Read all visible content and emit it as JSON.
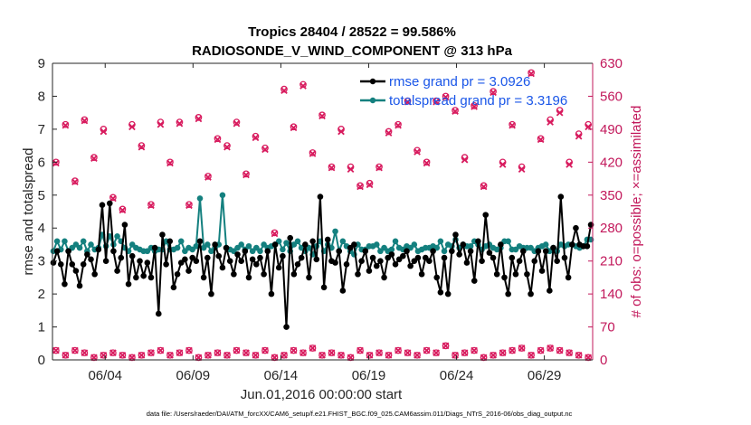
{
  "chart_data": {
    "type": "line",
    "title_line1": "Tropics 28404 / 28522 = 99.586%",
    "title_line2": "RADIOSONDE_V_WIND_COMPONENT @ 313 hPa",
    "xlabel": "Jun.01,2016 00:00:00 start",
    "ylabel_left": "rmse and totalspread",
    "ylabel_right": "# of obs: o=possible; ×=assimilated",
    "footer": "data file: /Users/raeder/DAI/ATM_forcXX/CAM6_setup/f.e21.FHIST_BGC.f09_025.CAM6assim.011/Diags_NTrS_2016-06/obs_diag_output.nc",
    "xlim": [
      0,
      30.75
    ],
    "ylim_left": [
      0,
      9
    ],
    "ylim_right": [
      0,
      630
    ],
    "x_ticks": [
      {
        "x": 3,
        "label": "06/04"
      },
      {
        "x": 8,
        "label": "06/09"
      },
      {
        "x": 13,
        "label": "06/14"
      },
      {
        "x": 18,
        "label": "06/19"
      },
      {
        "x": 23,
        "label": "06/24"
      },
      {
        "x": 28,
        "label": "06/29"
      }
    ],
    "y_ticks_left": [
      "0",
      "1",
      "2",
      "3",
      "4",
      "5",
      "6",
      "7",
      "8",
      "9"
    ],
    "y_ticks_right": [
      "0",
      "70",
      "140",
      "210",
      "280",
      "350",
      "420",
      "490",
      "560",
      "630"
    ],
    "legend": [
      {
        "label": "rmse grand pr = 3.0926",
        "color": "#000000"
      },
      {
        "label": "totalspread grand pr = 3.3196",
        "color": "#14807f"
      }
    ],
    "colors": {
      "rmse": "#000000",
      "spread": "#14807f",
      "obs": "#d81b5e",
      "axis_right": "#c2185b"
    },
    "series": [
      {
        "name": "rmse",
        "values": [
          2.95,
          3.3,
          2.9,
          2.3,
          3.3,
          2.9,
          2.7,
          2.25,
          2.9,
          3.2,
          3.05,
          2.6,
          3.35,
          4.7,
          3.0,
          4.75,
          3.3,
          2.7,
          3.1,
          4.1,
          2.3,
          3.15,
          2.5,
          3.0,
          2.55,
          2.95,
          2.5,
          3.4,
          1.4,
          3.8,
          2.9,
          3.6,
          2.2,
          2.6,
          2.95,
          3.05,
          2.7,
          3.1,
          3.0,
          3.6,
          2.5,
          3.1,
          2.0,
          3.5,
          3.15,
          2.8,
          3.4,
          3.0,
          2.6,
          3.2,
          3.0,
          3.3,
          2.5,
          3.05,
          2.9,
          3.1,
          2.6,
          3.3,
          2.0,
          3.5,
          2.8,
          3.15,
          1.0,
          3.7,
          2.6,
          2.9,
          3.1,
          3.5,
          2.5,
          3.6,
          3.05,
          4.95,
          2.2,
          3.65,
          3.0,
          2.95,
          3.3,
          2.1,
          2.9,
          3.4,
          3.5,
          2.6,
          3.0,
          3.3,
          2.7,
          3.1,
          2.85,
          3.0,
          2.5,
          3.1,
          3.2,
          2.9,
          3.05,
          3.15,
          3.3,
          2.85,
          3.0,
          3.1,
          2.6,
          3.1,
          3.0,
          3.3,
          2.5,
          2.05,
          3.1,
          2.0,
          3.3,
          3.8,
          3.2,
          3.5,
          2.95,
          3.3,
          2.4,
          3.6,
          3.0,
          4.4,
          3.25,
          3.1,
          2.6,
          3.5,
          2.5,
          2.0,
          3.1,
          2.6,
          3.0,
          3.3,
          2.6,
          2.0,
          3.0,
          3.3,
          2.7,
          3.3,
          2.1,
          3.4,
          3.0,
          4.95,
          3.1,
          2.5,
          3.5,
          4.0,
          3.5,
          3.45,
          3.45,
          4.1
        ]
      },
      {
        "name": "totalspread",
        "values": [
          3.3,
          3.6,
          3.35,
          3.6,
          3.3,
          3.4,
          3.5,
          3.4,
          3.6,
          3.3,
          3.5,
          3.35,
          3.4,
          3.8,
          3.45,
          3.75,
          3.5,
          3.75,
          3.6,
          3.4,
          3.3,
          3.5,
          3.4,
          3.35,
          3.3,
          3.3,
          3.4,
          3.3,
          3.35,
          3.35,
          3.6,
          3.35,
          3.35,
          3.4,
          3.6,
          3.3,
          3.4,
          3.35,
          3.45,
          4.9,
          3.4,
          3.5,
          3.3,
          3.4,
          3.5,
          5.0,
          3.4,
          3.35,
          3.3,
          3.4,
          3.5,
          3.35,
          3.45,
          3.3,
          3.4,
          3.3,
          3.5,
          3.4,
          3.45,
          3.5,
          3.6,
          3.35,
          3.55,
          3.3,
          3.5,
          3.6,
          3.4,
          3.3,
          3.4,
          3.2,
          3.45,
          3.6,
          3.3,
          3.5,
          3.4,
          3.9,
          3.3,
          3.6,
          3.45,
          3.3,
          3.2,
          3.5,
          3.35,
          3.35,
          3.45,
          3.45,
          3.5,
          3.3,
          3.4,
          3.3,
          3.35,
          3.6,
          3.4,
          3.35,
          3.45,
          3.4,
          3.5,
          3.3,
          3.35,
          3.4,
          3.4,
          3.45,
          3.4,
          3.6,
          3.3,
          3.5,
          3.45,
          3.65,
          3.4,
          3.5,
          3.45,
          3.45,
          3.6,
          3.5,
          3.35,
          3.45,
          3.5,
          3.4,
          3.35,
          3.4,
          3.6,
          3.6,
          3.35,
          3.35,
          3.45,
          3.4,
          3.4,
          3.4,
          3.3,
          3.4,
          3.45,
          3.5,
          3.3,
          3.4,
          3.3,
          3.5,
          3.45,
          3.5,
          3.5,
          3.45,
          3.4,
          3.45,
          3.65,
          3.65
        ]
      },
      {
        "name": "obs_possible_high",
        "values": [
          420,
          500,
          380,
          510,
          430,
          490,
          345,
          320,
          500,
          455,
          330,
          505,
          420,
          505,
          330,
          515,
          390,
          470,
          455,
          505,
          395,
          475,
          450,
          270,
          575,
          495,
          585,
          440,
          520,
          410,
          490,
          410,
          370,
          375,
          410,
          485,
          500,
          550,
          445,
          420,
          550,
          560,
          530,
          430,
          540,
          370,
          570,
          420,
          500,
          410,
          610,
          470,
          510,
          530,
          420,
          480,
          500
        ]
      },
      {
        "name": "obs_assimilated_high",
        "values": [
          418,
          498,
          378,
          508,
          428,
          485,
          343,
          318,
          495,
          452,
          328,
          500,
          418,
          502,
          328,
          512,
          388,
          468,
          452,
          502,
          393,
          472,
          447,
          268,
          572,
          493,
          582,
          438,
          518,
          408,
          485,
          405,
          368,
          372,
          408,
          482,
          498,
          548,
          442,
          418,
          548,
          558,
          528,
          425,
          538,
          368,
          568,
          415,
          498,
          405,
          608,
          468,
          505,
          525,
          415,
          475,
          495
        ]
      },
      {
        "name": "obs_low",
        "values": [
          20,
          10,
          20,
          15,
          5,
          10,
          15,
          10,
          5,
          10,
          15,
          20,
          10,
          15,
          20,
          5,
          10,
          15,
          10,
          20,
          15,
          10,
          20,
          5,
          10,
          20,
          15,
          25,
          10,
          15,
          10,
          5,
          20,
          10,
          15,
          10,
          20,
          15,
          10,
          20,
          15,
          30,
          10,
          15,
          20,
          5,
          10,
          15,
          20,
          25,
          10,
          20,
          25,
          20,
          15,
          10,
          5
        ]
      }
    ]
  }
}
